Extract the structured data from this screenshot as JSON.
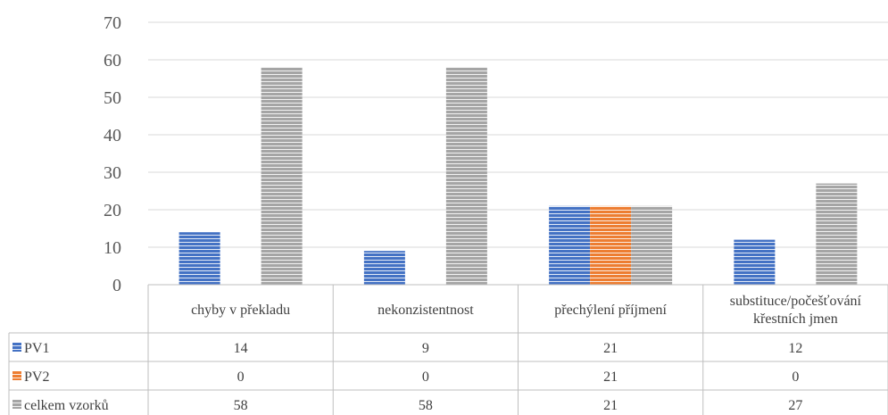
{
  "chart_data": {
    "type": "bar",
    "categories": [
      [
        "chyby v překladu"
      ],
      [
        "nekonzistentnost"
      ],
      [
        "přechýlení příjmení"
      ],
      [
        "substituce/počešťování",
        "křestních jmen"
      ]
    ],
    "series": [
      {
        "name": "PV1",
        "values": [
          14,
          9,
          21,
          12
        ],
        "color": "#4472C4"
      },
      {
        "name": "PV2",
        "values": [
          0,
          0,
          21,
          0
        ],
        "color": "#ED7D31"
      },
      {
        "name": "celkem vzorků",
        "values": [
          58,
          58,
          21,
          27
        ],
        "color": "#A5A5A5"
      }
    ],
    "yticks": [
      0,
      10,
      20,
      30,
      40,
      50,
      60,
      70
    ],
    "ylim": [
      0,
      70
    ],
    "grid": true,
    "data_table": true,
    "legend": "data-table-left"
  }
}
